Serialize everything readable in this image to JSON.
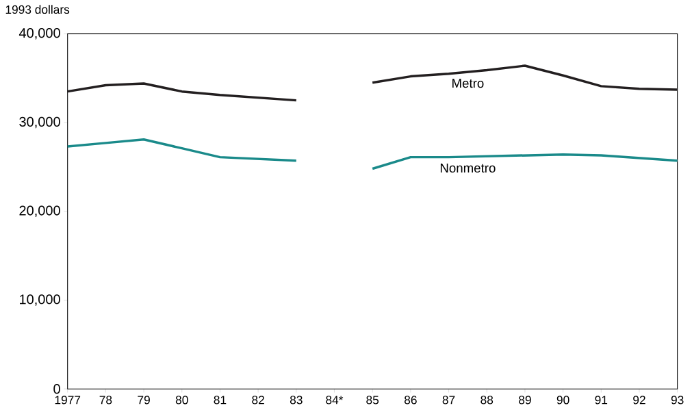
{
  "chart_data": {
    "type": "line",
    "ylabel": "1993 dollars",
    "categories": [
      "1977",
      "78",
      "79",
      "80",
      "81",
      "82",
      "83",
      "84*",
      "85",
      "86",
      "87",
      "88",
      "89",
      "90",
      "91",
      "92",
      "93"
    ],
    "series": [
      {
        "name": "Metro",
        "color": "#231f20",
        "values": [
          33500,
          34200,
          34400,
          33500,
          33100,
          32800,
          32500,
          null,
          34500,
          35200,
          35500,
          35900,
          36400,
          35300,
          34100,
          33800,
          33700
        ]
      },
      {
        "name": "Nonmetro",
        "color": "#1a8a8a",
        "values": [
          27300,
          27700,
          28100,
          27100,
          26100,
          25900,
          25700,
          null,
          24800,
          26100,
          26100,
          26200,
          26300,
          26400,
          26300,
          26000,
          25700
        ]
      }
    ],
    "ylim": [
      0,
      40000
    ],
    "yticks": [
      0,
      {
        "value": 10000,
        "label": "10,000"
      },
      {
        "value": 20000,
        "label": "20,000"
      },
      {
        "value": 30000,
        "label": "30,000"
      },
      {
        "value": 40000,
        "label": "40,000"
      }
    ],
    "grid": false,
    "legend": false,
    "marker": "none",
    "line_style": "solid"
  }
}
